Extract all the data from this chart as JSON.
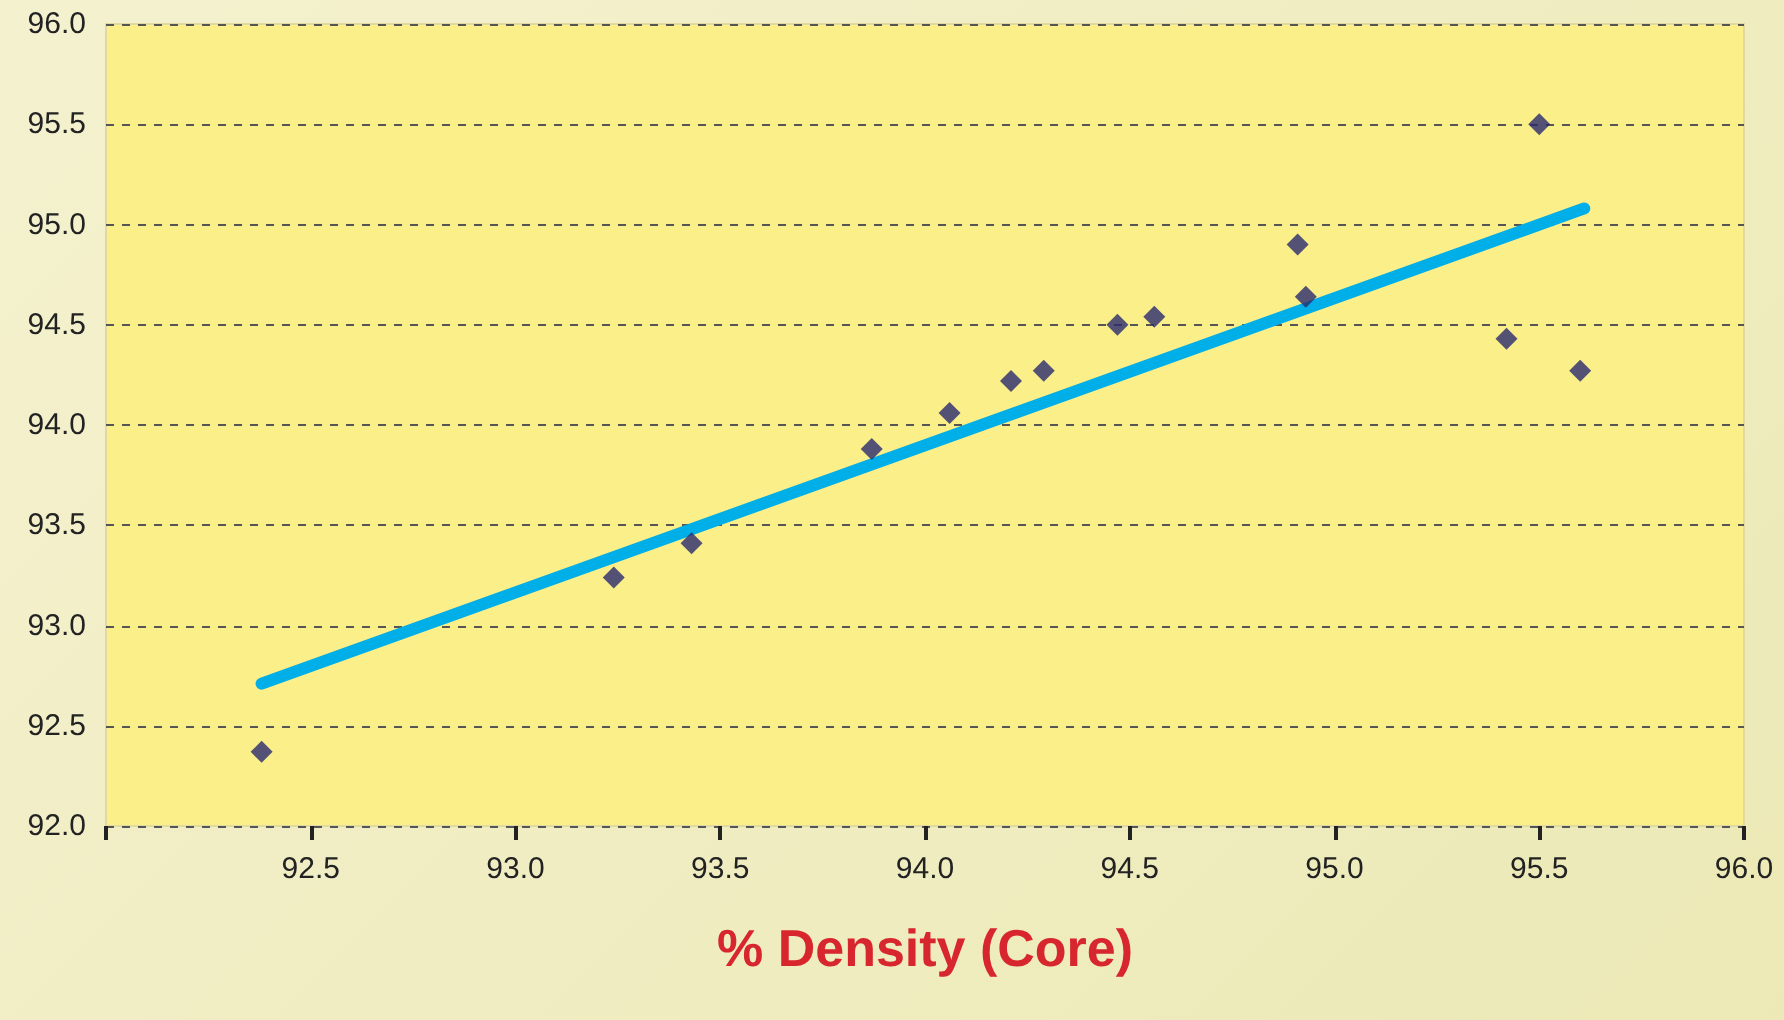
{
  "chart_data": {
    "type": "scatter",
    "xlabel": "% Density (Core)",
    "xlim": [
      92.0,
      96.0
    ],
    "ylim": [
      92.0,
      96.0
    ],
    "xticks": [
      {
        "value": 92.0,
        "label": null
      },
      {
        "value": 92.5,
        "label": "92.5"
      },
      {
        "value": 93.0,
        "label": "93.0"
      },
      {
        "value": 93.5,
        "label": "93.5"
      },
      {
        "value": 94.0,
        "label": "94.0"
      },
      {
        "value": 94.5,
        "label": "94.5"
      },
      {
        "value": 95.0,
        "label": "95.0"
      },
      {
        "value": 95.5,
        "label": "95.5"
      },
      {
        "value": 96.0,
        "label": "96.0"
      }
    ],
    "yticks": [
      {
        "value": 92.0,
        "label": "92.0"
      },
      {
        "value": 92.5,
        "label": "92.5"
      },
      {
        "value": 93.0,
        "label": "93.0"
      },
      {
        "value": 93.5,
        "label": "93.5"
      },
      {
        "value": 94.0,
        "label": "94.0"
      },
      {
        "value": 94.5,
        "label": "94.5"
      },
      {
        "value": 95.0,
        "label": "95.0"
      },
      {
        "value": 95.5,
        "label": "95.5"
      },
      {
        "value": 96.0,
        "label": "96.0"
      }
    ],
    "grid": "y",
    "marker": "diamond",
    "series": [
      {
        "color": "#2b2a6e",
        "x": [
          92.38,
          93.24,
          93.43,
          93.87,
          94.06,
          94.21,
          94.29,
          94.47,
          94.56,
          94.91,
          94.93,
          95.42,
          95.5,
          95.6
        ],
        "values": [
          92.37,
          93.24,
          93.41,
          93.88,
          94.06,
          94.22,
          94.27,
          94.5,
          94.54,
          94.9,
          94.64,
          94.43,
          95.5,
          94.27
        ]
      },
      {
        "type": "line",
        "color": "#00aee8",
        "marker": "none",
        "x": [
          92.38,
          95.61
        ],
        "values": [
          92.71,
          95.08
        ]
      }
    ]
  }
}
